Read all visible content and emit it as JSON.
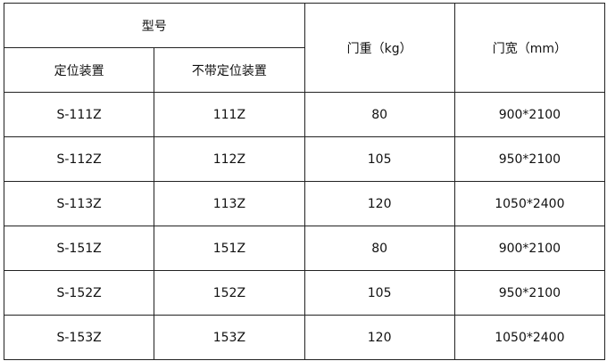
{
  "header": {
    "model": "型号",
    "with_positioning": "定位装置",
    "without_positioning": "不带定位装置",
    "door_weight": "门重（kg）",
    "door_width": "门宽（mm）"
  },
  "rows": [
    {
      "with": "S-111Z",
      "without": "111Z",
      "weight": "80",
      "size": "900*2100"
    },
    {
      "with": "S-112Z",
      "without": "112Z",
      "weight": "105",
      "size": "950*2100"
    },
    {
      "with": "S-113Z",
      "without": "113Z",
      "weight": "120",
      "size": "1050*2400"
    },
    {
      "with": "S-151Z",
      "without": "151Z",
      "weight": "80",
      "size": "900*2100"
    },
    {
      "with": "S-152Z",
      "without": "152Z",
      "weight": "105",
      "size": "950*2100"
    },
    {
      "with": "S-153Z",
      "without": "153Z",
      "weight": "120",
      "size": "1050*2400"
    }
  ]
}
